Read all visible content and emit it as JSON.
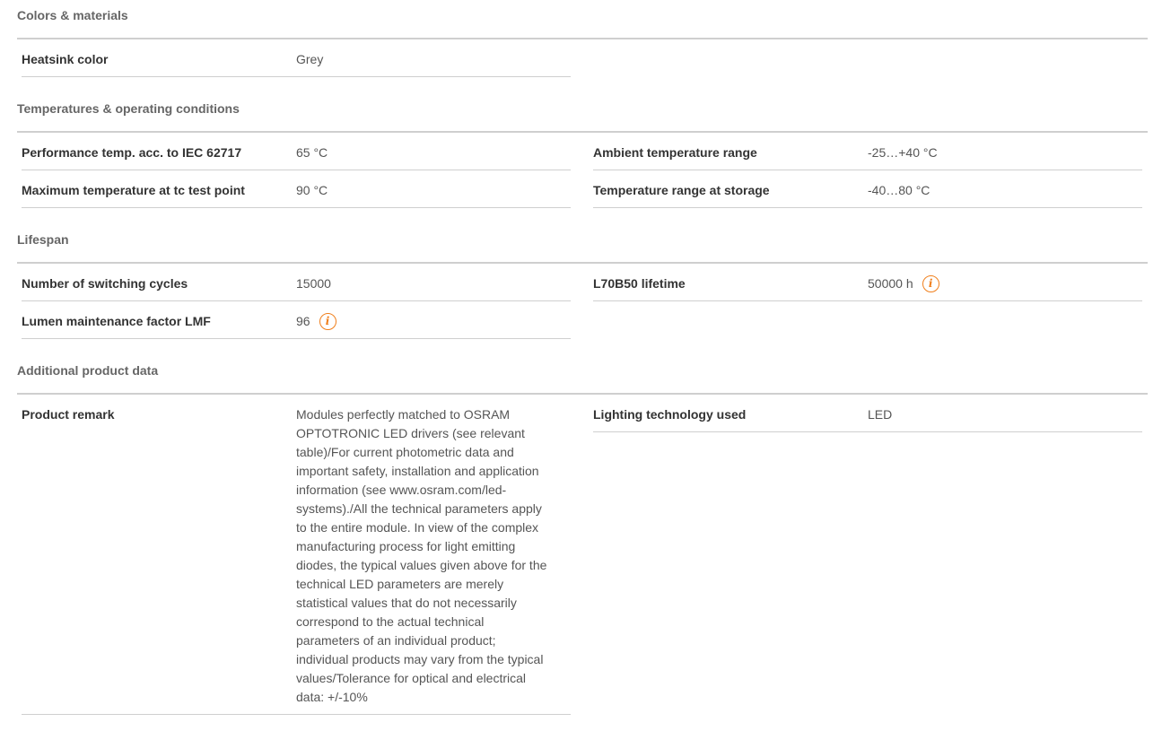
{
  "sections": [
    {
      "title": "Colors & materials",
      "left": [
        {
          "label": "Heatsink color",
          "value": "Grey"
        }
      ],
      "right": []
    },
    {
      "title": "Temperatures & operating conditions",
      "left": [
        {
          "label": "Performance temp. acc. to IEC 62717",
          "value": "65 °C"
        },
        {
          "label": "Maximum temperature at tc test point",
          "value": "90 °C"
        }
      ],
      "right": [
        {
          "label": "Ambient temperature range",
          "value": "-25…+40 °C"
        },
        {
          "label": "Temperature range at storage",
          "value": "-40…80 °C"
        }
      ]
    },
    {
      "title": "Lifespan",
      "left": [
        {
          "label": "Number of switching cycles",
          "value": "15000"
        },
        {
          "label": "Lumen maintenance factor LMF",
          "value": "96",
          "icon": "info-icon"
        }
      ],
      "right": [
        {
          "label": "L70B50 lifetime",
          "value": "50000 h",
          "icon": "info-icon"
        }
      ]
    },
    {
      "title": "Additional product data",
      "left": [
        {
          "label": "Product remark",
          "value": "Modules perfectly matched to OSRAM OPTOTRONIC LED drivers (see relevant table)/For current photometric data and important safety, installation and application information (see www.osram.com/led-systems)./All the technical parameters apply to the entire module. In view of the complex manufacturing process for light emitting diodes, the typical values given above for the technical LED parameters are merely statistical values that do not necessarily correspond to the actual technical parameters of an individual product; individual products may vary from the typical values/Tolerance for optical and electrical data: +/-10%"
        }
      ],
      "right": [
        {
          "label": "Lighting technology used",
          "value": "LED"
        }
      ]
    }
  ],
  "colors": {
    "accent": "#f07f1c",
    "divider": "#cfcfcf"
  }
}
